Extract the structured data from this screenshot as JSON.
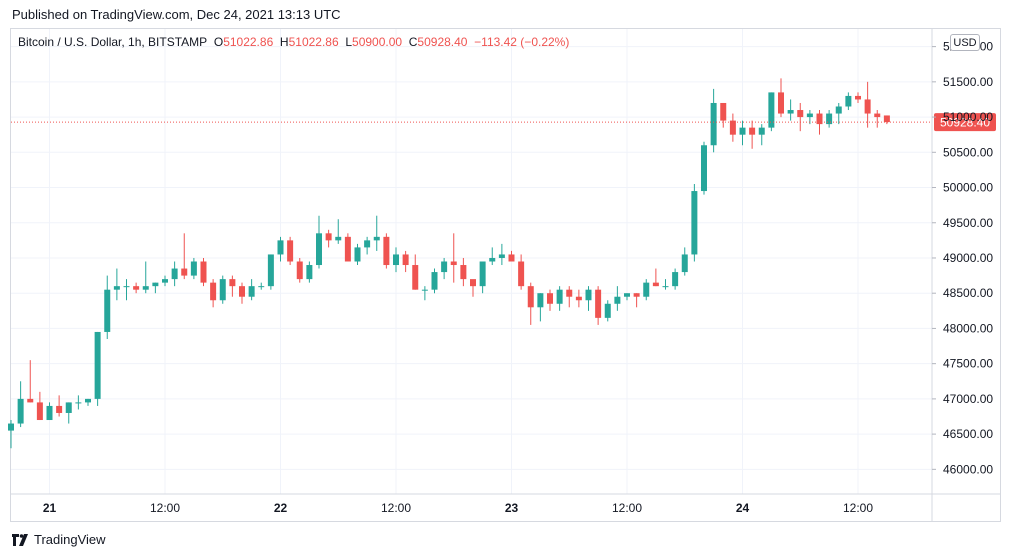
{
  "header": {
    "published": "Published on TradingView.com, Dec 24, 2021 13:13 UTC"
  },
  "legend": {
    "symbol": "Bitcoin / U.S. Dollar, 1h, BITSTAMP",
    "o_label": "O",
    "o_value": "51022.86",
    "h_label": "H",
    "h_value": "51022.86",
    "l_label": "L",
    "l_value": "50900.00",
    "c_label": "C",
    "c_value": "50928.40",
    "change": "−113.42 (−0.22%)"
  },
  "currency_button": "USD",
  "footer": {
    "brand": "TradingView"
  },
  "colors": {
    "up": "#26a69a",
    "down": "#ef5350",
    "grid": "#f0f3fa",
    "text": "#131722"
  },
  "chart_data": {
    "type": "candlestick",
    "ylim": [
      45650,
      52250
    ],
    "y_ticks": [
      46000,
      46500,
      47000,
      47500,
      48000,
      48500,
      49000,
      49500,
      50000,
      50500,
      51000,
      51500,
      52000
    ],
    "y_tick_labels": [
      "46000.00",
      "46500.00",
      "47000.00",
      "47500.00",
      "48000.00",
      "48500.00",
      "49000.00",
      "49500.00",
      "50000.00",
      "50500.00",
      "51000.00",
      "51500.00",
      "52000.00"
    ],
    "x_ticks": [
      {
        "label": "21",
        "index": 4,
        "bold": true
      },
      {
        "label": "12:00",
        "index": 16,
        "bold": false
      },
      {
        "label": "22",
        "index": 28,
        "bold": true
      },
      {
        "label": "12:00",
        "index": 40,
        "bold": false
      },
      {
        "label": "23",
        "index": 52,
        "bold": true
      },
      {
        "label": "12:00",
        "index": 64,
        "bold": false
      },
      {
        "label": "24",
        "index": 76,
        "bold": true
      },
      {
        "label": "12:00",
        "index": 88,
        "bold": false
      }
    ],
    "last_price": 50928.4,
    "last_price_label": "50928.40",
    "candles": [
      [
        46550,
        46700,
        46300,
        46650
      ],
      [
        46650,
        47250,
        46600,
        47000
      ],
      [
        47000,
        47550,
        46950,
        46950
      ],
      [
        46950,
        47100,
        46700,
        46700
      ],
      [
        46700,
        46950,
        46700,
        46900
      ],
      [
        46900,
        47050,
        46750,
        46800
      ],
      [
        46800,
        46950,
        46650,
        46950
      ],
      [
        46950,
        47050,
        46850,
        46950
      ],
      [
        46950,
        47000,
        46900,
        47000
      ],
      [
        47000,
        47950,
        46900,
        47950
      ],
      [
        47950,
        48750,
        47850,
        48550
      ],
      [
        48550,
        48850,
        48400,
        48600
      ],
      [
        48600,
        48700,
        48400,
        48600
      ],
      [
        48600,
        48650,
        48500,
        48550
      ],
      [
        48550,
        48950,
        48500,
        48600
      ],
      [
        48600,
        48650,
        48500,
        48650
      ],
      [
        48650,
        48750,
        48600,
        48700
      ],
      [
        48700,
        48950,
        48600,
        48850
      ],
      [
        48850,
        49350,
        48700,
        48750
      ],
      [
        48750,
        49000,
        48700,
        48950
      ],
      [
        48950,
        49000,
        48600,
        48650
      ],
      [
        48650,
        48700,
        48300,
        48400
      ],
      [
        48400,
        48750,
        48350,
        48700
      ],
      [
        48700,
        48750,
        48450,
        48600
      ],
      [
        48600,
        48650,
        48350,
        48450
      ],
      [
        48450,
        48700,
        48400,
        48600
      ],
      [
        48600,
        48650,
        48550,
        48600
      ],
      [
        48600,
        49050,
        48550,
        49050
      ],
      [
        49050,
        49300,
        48950,
        49250
      ],
      [
        49250,
        49300,
        48900,
        48950
      ],
      [
        48950,
        49000,
        48650,
        48700
      ],
      [
        48700,
        48950,
        48650,
        48900
      ],
      [
        48900,
        49600,
        48850,
        49350
      ],
      [
        49350,
        49400,
        49150,
        49250
      ],
      [
        49250,
        49550,
        49200,
        49300
      ],
      [
        49300,
        49350,
        48950,
        48950
      ],
      [
        48950,
        49200,
        48900,
        49150
      ],
      [
        49150,
        49300,
        49050,
        49250
      ],
      [
        49250,
        49600,
        49100,
        49300
      ],
      [
        49300,
        49350,
        48850,
        48900
      ],
      [
        48900,
        49150,
        48800,
        49050
      ],
      [
        49050,
        49100,
        48800,
        48900
      ],
      [
        48900,
        49050,
        48550,
        48550
      ],
      [
        48550,
        48600,
        48400,
        48550
      ],
      [
        48550,
        48850,
        48500,
        48800
      ],
      [
        48800,
        49000,
        48700,
        48950
      ],
      [
        48950,
        49350,
        48650,
        48900
      ],
      [
        48900,
        49000,
        48600,
        48700
      ],
      [
        48700,
        48650,
        48450,
        48600
      ],
      [
        48600,
        48950,
        48500,
        48950
      ],
      [
        48950,
        49150,
        48900,
        49000
      ],
      [
        49000,
        49200,
        48900,
        49050
      ],
      [
        49050,
        49100,
        48950,
        48950
      ],
      [
        48950,
        49050,
        48550,
        48600
      ],
      [
        48600,
        48650,
        48050,
        48300
      ],
      [
        48300,
        48500,
        48100,
        48500
      ],
      [
        48500,
        48550,
        48250,
        48350
      ],
      [
        48350,
        48600,
        48250,
        48550
      ],
      [
        48550,
        48600,
        48300,
        48450
      ],
      [
        48450,
        48550,
        48300,
        48400
      ],
      [
        48400,
        48600,
        48250,
        48550
      ],
      [
        48550,
        48600,
        48050,
        48150
      ],
      [
        48150,
        48400,
        48100,
        48350
      ],
      [
        48350,
        48600,
        48250,
        48450
      ],
      [
        48450,
        48500,
        48400,
        48500
      ],
      [
        48500,
        48500,
        48300,
        48450
      ],
      [
        48450,
        48700,
        48400,
        48650
      ],
      [
        48650,
        48850,
        48600,
        48600
      ],
      [
        48600,
        48700,
        48550,
        48600
      ],
      [
        48600,
        48850,
        48550,
        48800
      ],
      [
        48800,
        49150,
        48750,
        49050
      ],
      [
        49050,
        50050,
        48950,
        49950
      ],
      [
        49950,
        50650,
        49900,
        50600
      ],
      [
        50600,
        51400,
        50500,
        51200
      ],
      [
        51200,
        51200,
        50850,
        50950
      ],
      [
        50950,
        51050,
        50650,
        50750
      ],
      [
        50750,
        50950,
        50600,
        50850
      ],
      [
        50850,
        50950,
        50550,
        50750
      ],
      [
        50750,
        50900,
        50600,
        50850
      ],
      [
        50850,
        51350,
        50800,
        51350
      ],
      [
        51350,
        51550,
        51000,
        51050
      ],
      [
        51050,
        51250,
        50950,
        51100
      ],
      [
        51100,
        51200,
        50800,
        51000
      ],
      [
        51000,
        51100,
        50900,
        51050
      ],
      [
        51050,
        51100,
        50750,
        50900
      ],
      [
        50900,
        51100,
        50850,
        51050
      ],
      [
        51050,
        51200,
        50900,
        51150
      ],
      [
        51150,
        51350,
        51100,
        51300
      ],
      [
        51300,
        51350,
        51200,
        51250
      ],
      [
        51250,
        51500,
        50850,
        51050
      ],
      [
        51050,
        51100,
        50850,
        51000
      ],
      [
        51022.86,
        51022.86,
        50900,
        50928.4
      ]
    ]
  }
}
